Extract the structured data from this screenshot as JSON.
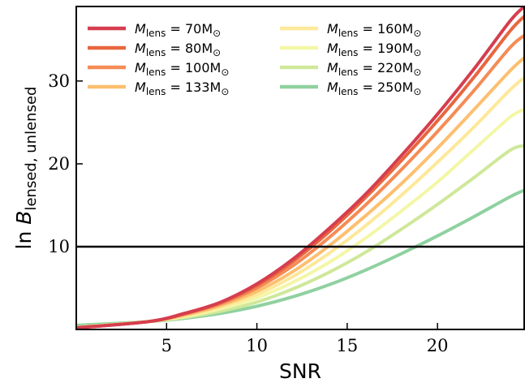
{
  "chart_data": {
    "type": "line",
    "title": "",
    "xlabel": "SNR",
    "ylabel_prefix": "ln ",
    "ylabel_symbol": "B",
    "ylabel_subscript": "lensed, unlensed",
    "xlim": [
      0,
      24.8
    ],
    "ylim": [
      0,
      39
    ],
    "xticks": [
      5,
      10,
      15,
      20
    ],
    "yticks": [
      10,
      20,
      30
    ],
    "grid": false,
    "legend_position": "top-left",
    "threshold_line": {
      "y": 10,
      "color": "#000000"
    },
    "series": [
      {
        "name_prefix": "M",
        "name_sub": "lens",
        "name_value": " = 70M",
        "name_unit": "⊙",
        "color": "#d53e4f",
        "points": [
          [
            0,
            0.2
          ],
          [
            4,
            0.95
          ],
          [
            6,
            1.95
          ],
          [
            8,
            3.3
          ],
          [
            10,
            5.5
          ],
          [
            12,
            8.5
          ],
          [
            14,
            12.2
          ],
          [
            16,
            16.3
          ],
          [
            18,
            21.0
          ],
          [
            20,
            26.0
          ],
          [
            22,
            31.4
          ],
          [
            24,
            37.2
          ],
          [
            24.8,
            39.0
          ]
        ]
      },
      {
        "name_prefix": "M",
        "name_sub": "lens",
        "name_value": " = 80M",
        "name_unit": "⊙",
        "color": "#e8663f",
        "points": [
          [
            0,
            0.2
          ],
          [
            4,
            0.95
          ],
          [
            6,
            1.9
          ],
          [
            8,
            3.25
          ],
          [
            10,
            5.3
          ],
          [
            12,
            8.2
          ],
          [
            14,
            11.8
          ],
          [
            16,
            15.9
          ],
          [
            18,
            20.4
          ],
          [
            20,
            25.2
          ],
          [
            22,
            30.4
          ],
          [
            24,
            36.0
          ],
          [
            24.8,
            37.8
          ]
        ]
      },
      {
        "name_prefix": "M",
        "name_sub": "lens",
        "name_value": " = 100M",
        "name_unit": "⊙",
        "color": "#f48c55",
        "points": [
          [
            0,
            0.2
          ],
          [
            4,
            0.95
          ],
          [
            6,
            1.85
          ],
          [
            8,
            3.1
          ],
          [
            10,
            5.0
          ],
          [
            12,
            7.7
          ],
          [
            14,
            11.1
          ],
          [
            16,
            15.0
          ],
          [
            18,
            19.3
          ],
          [
            20,
            23.9
          ],
          [
            22,
            28.8
          ],
          [
            24,
            34.0
          ],
          [
            24.8,
            35.5
          ]
        ]
      },
      {
        "name_prefix": "M",
        "name_sub": "lens",
        "name_value": " = 133M",
        "name_unit": "⊙",
        "color": "#fdbf6f",
        "points": [
          [
            0,
            0.2
          ],
          [
            4,
            0.95
          ],
          [
            6,
            1.75
          ],
          [
            8,
            2.9
          ],
          [
            10,
            4.6
          ],
          [
            12,
            7.0
          ],
          [
            14,
            10.1
          ],
          [
            16,
            13.7
          ],
          [
            18,
            17.6
          ],
          [
            20,
            21.9
          ],
          [
            22,
            26.5
          ],
          [
            24,
            31.2
          ],
          [
            24.8,
            32.8
          ]
        ]
      },
      {
        "name_prefix": "M",
        "name_sub": "lens",
        "name_value": " = 160M",
        "name_unit": "⊙",
        "color": "#fee899",
        "points": [
          [
            0,
            0.2
          ],
          [
            4,
            0.95
          ],
          [
            6,
            1.65
          ],
          [
            8,
            2.7
          ],
          [
            10,
            4.2
          ],
          [
            12,
            6.4
          ],
          [
            14,
            9.2
          ],
          [
            16,
            12.5
          ],
          [
            18,
            16.2
          ],
          [
            20,
            20.2
          ],
          [
            22,
            24.4
          ],
          [
            24,
            28.9
          ],
          [
            24.8,
            30.4
          ]
        ]
      },
      {
        "name_prefix": "M",
        "name_sub": "lens",
        "name_value": " = 190M",
        "name_unit": "⊙",
        "color": "#f3f7a6",
        "points": [
          [
            0,
            0.2
          ],
          [
            4,
            0.95
          ],
          [
            6,
            1.55
          ],
          [
            8,
            2.5
          ],
          [
            10,
            3.8
          ],
          [
            12,
            5.7
          ],
          [
            14,
            8.1
          ],
          [
            16,
            11.0
          ],
          [
            18,
            14.3
          ],
          [
            20,
            17.8
          ],
          [
            22,
            21.7
          ],
          [
            24,
            25.6
          ],
          [
            24.8,
            26.6
          ]
        ]
      },
      {
        "name_prefix": "M",
        "name_sub": "lens",
        "name_value": " = 220M",
        "name_unit": "⊙",
        "color": "#cfe89a",
        "points": [
          [
            0,
            0.3
          ],
          [
            4,
            0.95
          ],
          [
            6,
            1.45
          ],
          [
            8,
            2.2
          ],
          [
            10,
            3.3
          ],
          [
            12,
            4.9
          ],
          [
            14,
            6.9
          ],
          [
            16,
            9.3
          ],
          [
            18,
            12.1
          ],
          [
            20,
            15.1
          ],
          [
            22,
            18.3
          ],
          [
            24,
            21.6
          ],
          [
            24.8,
            22.2
          ]
        ]
      },
      {
        "name_prefix": "M",
        "name_sub": "lens",
        "name_value": " = 250M",
        "name_unit": "⊙",
        "color": "#8fd1a0",
        "points": [
          [
            0,
            0.5
          ],
          [
            4,
            0.95
          ],
          [
            6,
            1.35
          ],
          [
            8,
            1.95
          ],
          [
            10,
            2.8
          ],
          [
            12,
            3.95
          ],
          [
            14,
            5.4
          ],
          [
            16,
            7.15
          ],
          [
            18,
            9.15
          ],
          [
            20,
            11.3
          ],
          [
            22,
            13.6
          ],
          [
            24,
            16.0
          ],
          [
            24.8,
            16.8
          ]
        ]
      }
    ]
  }
}
